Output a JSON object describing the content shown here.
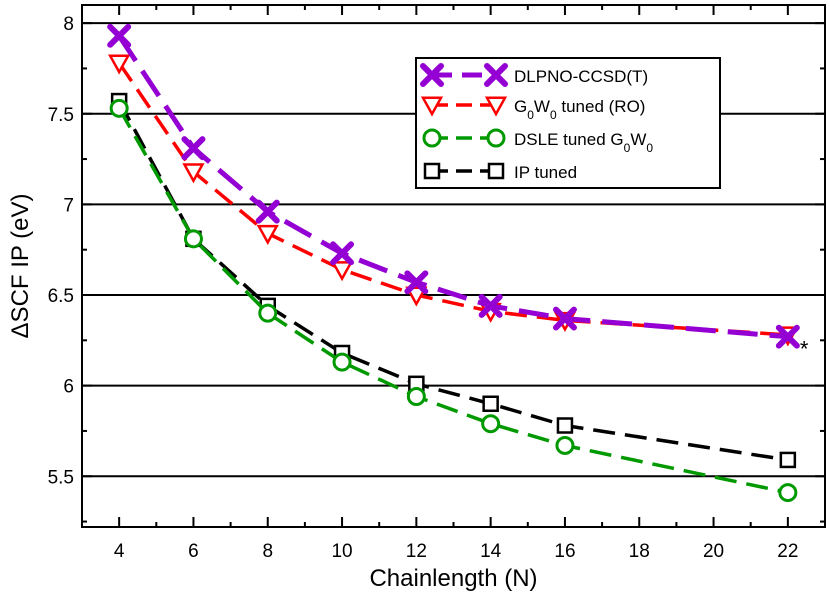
{
  "chart_data": {
    "type": "line",
    "title": "",
    "xlabel": "Chainlength (N)",
    "ylabel": "ΔSCF IP (eV)",
    "xlim": [
      3,
      23
    ],
    "ylim": [
      5.22,
      8.1
    ],
    "xticks": [
      4,
      6,
      8,
      10,
      12,
      14,
      16,
      18,
      20,
      22
    ],
    "yticks": [
      5.5,
      6,
      6.5,
      7,
      7.5,
      8
    ],
    "ytick_labels": [
      "5.5",
      "6",
      "6.5",
      "7",
      "7.5",
      "8"
    ],
    "grid": "horizontal at major y ticks",
    "legend_position": "top-right",
    "annotation": {
      "text": "*",
      "x": 22,
      "y": 6.27
    },
    "series": [
      {
        "name": "DLPNO-CCSD(T)",
        "legend_parts": [
          {
            "text": "DLPNO-CCSD(T)"
          }
        ],
        "color": "#9400d3",
        "marker": "x",
        "x": [
          4,
          6,
          8,
          10,
          12,
          14,
          16,
          22
        ],
        "values": [
          7.93,
          7.31,
          6.96,
          6.73,
          6.57,
          6.44,
          6.37,
          6.27
        ]
      },
      {
        "name": "G0W0 tuned (RO)",
        "legend_parts": [
          {
            "text": "G"
          },
          {
            "text": "0",
            "sub": true
          },
          {
            "text": "W"
          },
          {
            "text": "0",
            "sub": true
          },
          {
            "text": " tuned (RO)"
          }
        ],
        "color": "#ff0000",
        "marker": "triangle-down",
        "x": [
          4,
          6,
          8,
          10,
          12,
          14,
          16,
          22
        ],
        "values": [
          7.78,
          7.18,
          6.84,
          6.64,
          6.5,
          6.41,
          6.36,
          6.28
        ]
      },
      {
        "name": "DSLE tuned G0W0",
        "legend_parts": [
          {
            "text": "DSLE tuned G"
          },
          {
            "text": "0",
            "sub": true
          },
          {
            "text": "W"
          },
          {
            "text": "0",
            "sub": true
          }
        ],
        "color": "#009900",
        "marker": "circle",
        "x": [
          4,
          6,
          8,
          10,
          12,
          14,
          16,
          22
        ],
        "values": [
          7.53,
          6.81,
          6.4,
          6.13,
          5.94,
          5.79,
          5.67,
          5.41
        ]
      },
      {
        "name": "IP tuned",
        "legend_parts": [
          {
            "text": "IP tuned"
          }
        ],
        "color": "#000000",
        "marker": "square",
        "x": [
          4,
          6,
          8,
          10,
          12,
          14,
          16,
          22
        ],
        "values": [
          7.57,
          6.81,
          6.44,
          6.18,
          6.01,
          5.9,
          5.78,
          5.59
        ]
      }
    ]
  }
}
